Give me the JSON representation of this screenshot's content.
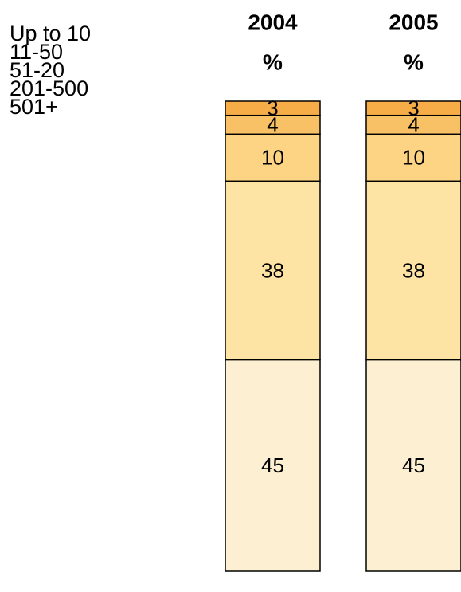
{
  "chart_data": {
    "type": "stacked_bar",
    "categories": [
      "2004",
      "2005"
    ],
    "unit_label": "%",
    "ylim": [
      0,
      100
    ],
    "series": [
      {
        "name": "Up to 10",
        "color": "#fcefd2",
        "values": [
          45,
          45
        ]
      },
      {
        "name": "11-50",
        "color": "#fde4a5",
        "values": [
          38,
          38
        ]
      },
      {
        "name": "51-20",
        "color": "#fdd384",
        "values": [
          10,
          10
        ]
      },
      {
        "name": "201-500",
        "color": "#f9c165",
        "values": [
          4,
          4
        ]
      },
      {
        "name": "501+",
        "color": "#f6ad47",
        "values": [
          3,
          3
        ]
      }
    ]
  }
}
